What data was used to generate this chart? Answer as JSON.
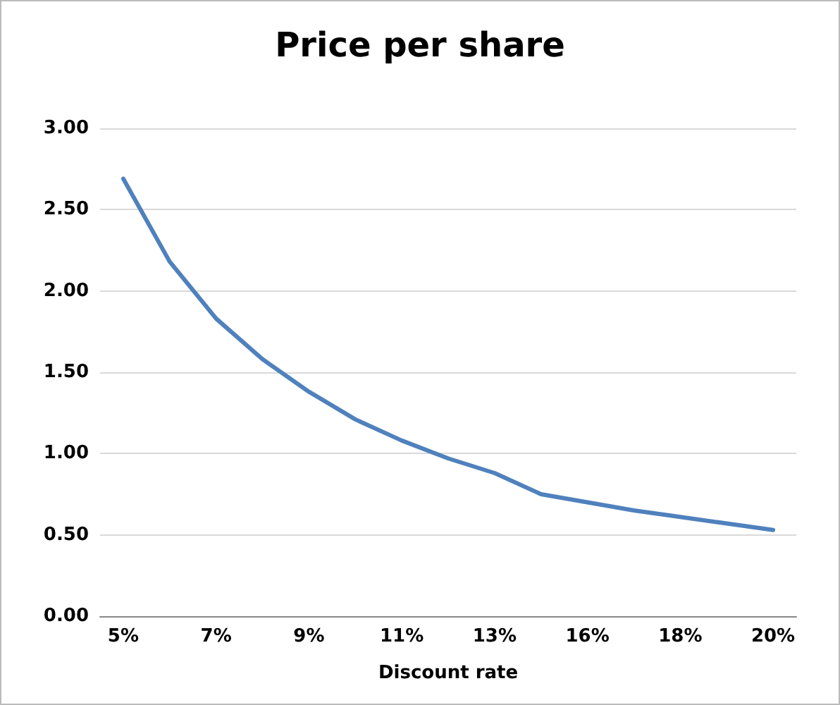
{
  "chart_data": {
    "type": "line",
    "title": "Price per share",
    "xlabel": "Discount rate",
    "categories": [
      "5%",
      null,
      "7%",
      null,
      "9%",
      null,
      "11%",
      null,
      "13%",
      null,
      "16%",
      null,
      "18%",
      null,
      "20%"
    ],
    "series": [
      {
        "color": "#4f81bd",
        "values": [
          2.69,
          2.18,
          1.83,
          1.58,
          1.38,
          1.21,
          1.08,
          0.97,
          0.88,
          0.75,
          0.7,
          0.65,
          0.61,
          0.57,
          0.53
        ]
      }
    ],
    "ylim": [
      0,
      3
    ],
    "yticks": [
      {
        "value": 0,
        "label": "0.00"
      },
      {
        "value": 0.5,
        "label": "0.50"
      },
      {
        "value": 1,
        "label": "1.00"
      },
      {
        "value": 1.5,
        "label": "1.50"
      },
      {
        "value": 2,
        "label": "2.00"
      },
      {
        "value": 2.5,
        "label": "2.50"
      },
      {
        "value": 3,
        "label": "3.00"
      }
    ],
    "grid": "y",
    "marker": "none",
    "line_style": "solid"
  }
}
